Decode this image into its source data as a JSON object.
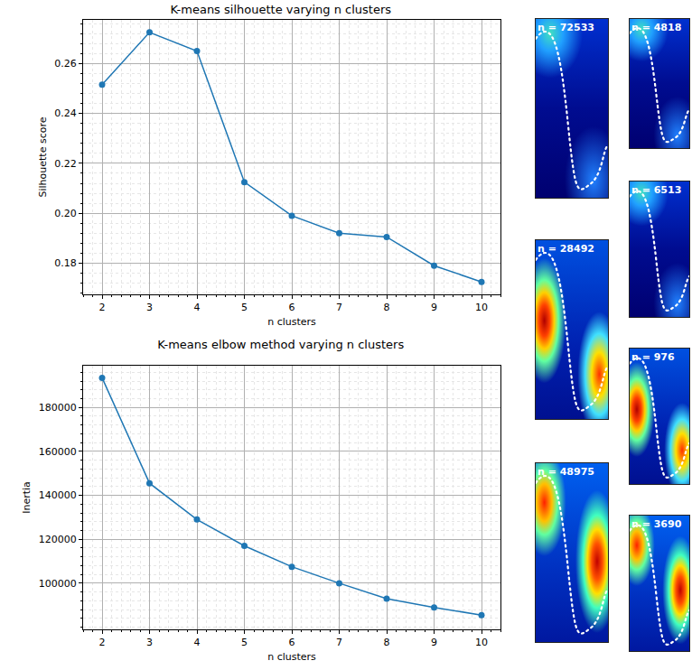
{
  "chart_data": [
    {
      "type": "line",
      "title": "K-means silhouette varying n clusters",
      "x_label": "n clusters",
      "y_label": "Silhouette score",
      "x": [
        2,
        3,
        4,
        5,
        6,
        7,
        8,
        9,
        10
      ],
      "values": [
        0.2515,
        0.2725,
        0.265,
        0.2125,
        0.199,
        0.192,
        0.1905,
        0.179,
        0.1725
      ],
      "color": "#1f77b4",
      "marker": "circle",
      "xlim": [
        1.6,
        10.4
      ],
      "ylim": [
        0.1675,
        0.2775
      ],
      "xticks": [
        2,
        3,
        4,
        5,
        6,
        7,
        8,
        9,
        10
      ],
      "yticks": [
        0.18,
        {
          "value": 0.2,
          "label": "0.20"
        },
        0.22,
        0.24,
        0.26
      ],
      "grid": true
    },
    {
      "type": "line",
      "title": "K-means elbow method varying n clusters",
      "x_label": "n clusters",
      "y_label": "Inertia",
      "x": [
        2,
        3,
        4,
        5,
        6,
        7,
        8,
        9,
        10
      ],
      "values": [
        193500,
        145500,
        129000,
        117000,
        107500,
        100000,
        93000,
        89000,
        85500
      ],
      "color": "#1f77b4",
      "marker": "circle",
      "xlim": [
        1.6,
        10.4
      ],
      "ylim": [
        79000,
        199000
      ],
      "xticks": [
        2,
        3,
        4,
        5,
        6,
        7,
        8,
        9,
        10
      ],
      "yticks": [
        100000,
        120000,
        140000,
        160000,
        180000
      ],
      "grid": true
    }
  ],
  "panels": [
    {
      "label": "n = 72533"
    },
    {
      "label": "n = 28492"
    },
    {
      "label": "n = 48975"
    },
    {
      "label": "n = 4818"
    },
    {
      "label": "n = 6513"
    },
    {
      "label": "n = 976"
    },
    {
      "label": "n = 3690"
    }
  ]
}
